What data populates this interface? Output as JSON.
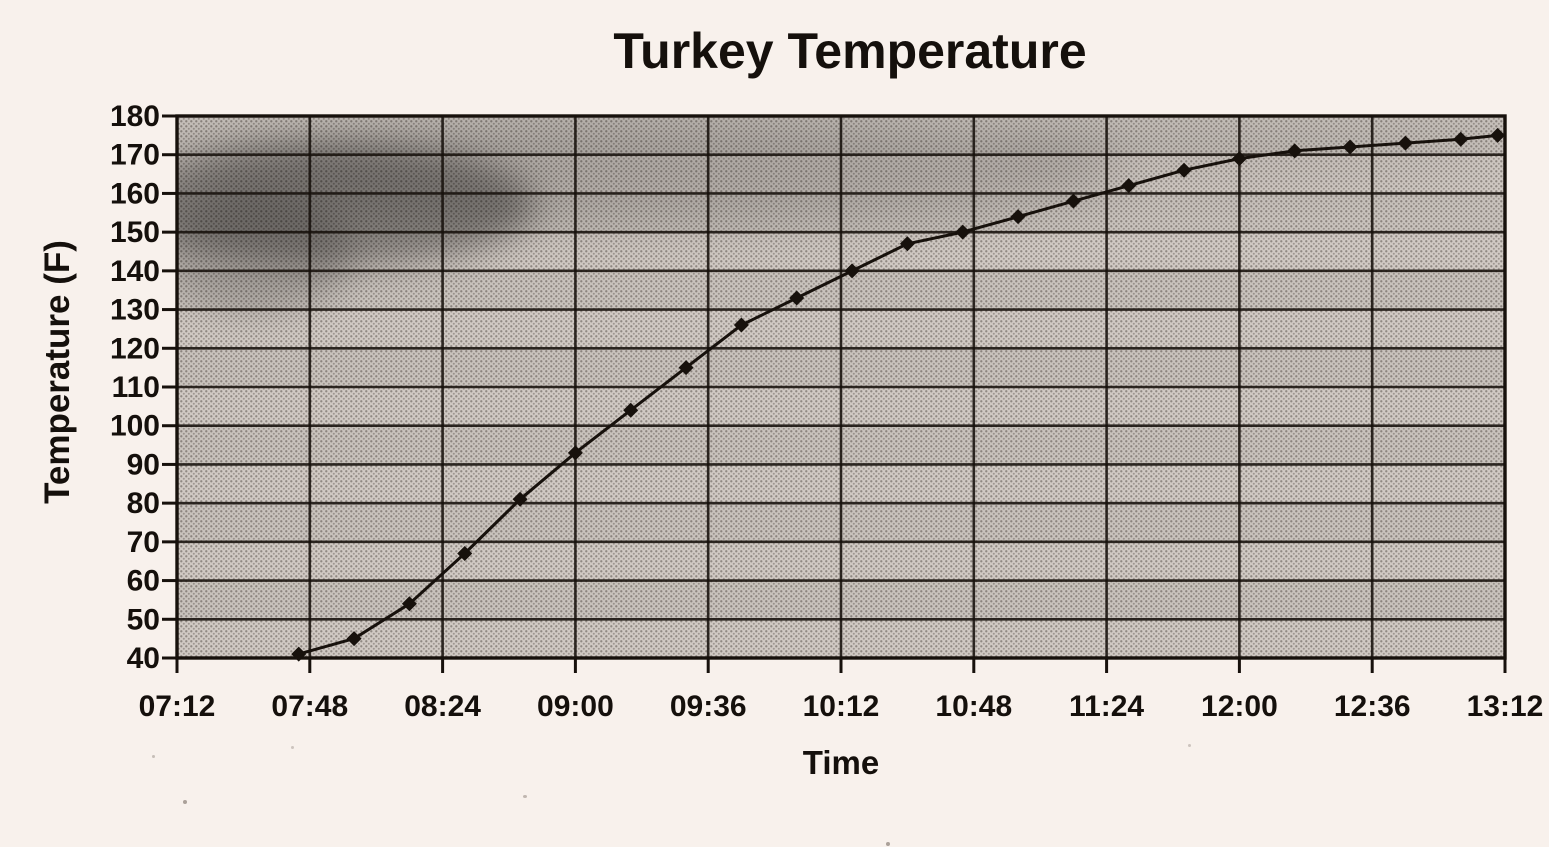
{
  "page": {
    "background_color": "#f8f1ec",
    "style": "scanned-photocopy"
  },
  "chart_data": {
    "type": "line",
    "title": "Turkey Temperature",
    "xlabel": "Time",
    "ylabel": "Temperature (F)",
    "x_tick_labels": [
      "07:12",
      "07:48",
      "08:24",
      "09:00",
      "09:36",
      "10:12",
      "10:48",
      "11:24",
      "12:00",
      "12:36",
      "13:12"
    ],
    "x_domain": [
      "07:12",
      "13:12"
    ],
    "ylim": [
      40,
      180
    ],
    "y_tick_step": 10,
    "grid": true,
    "legend_position": "none",
    "marker": "diamond",
    "line_color": "#17110c",
    "plot_area_fill": "#d8d1cb",
    "plot_area_texture": "halftone-dots",
    "points": [
      [
        "07:45",
        41
      ],
      [
        "08:00",
        45
      ],
      [
        "08:15",
        54
      ],
      [
        "08:30",
        67
      ],
      [
        "08:45",
        81
      ],
      [
        "09:00",
        93
      ],
      [
        "09:15",
        104
      ],
      [
        "09:30",
        115
      ],
      [
        "09:45",
        126
      ],
      [
        "10:00",
        133
      ],
      [
        "10:15",
        140
      ],
      [
        "10:30",
        147
      ],
      [
        "10:45",
        150
      ],
      [
        "11:00",
        154
      ],
      [
        "11:15",
        158
      ],
      [
        "11:30",
        162
      ],
      [
        "11:45",
        166
      ],
      [
        "12:00",
        169
      ],
      [
        "12:15",
        171
      ],
      [
        "12:30",
        172
      ],
      [
        "12:45",
        173
      ],
      [
        "13:00",
        174
      ],
      [
        "13:10",
        175
      ]
    ]
  }
}
